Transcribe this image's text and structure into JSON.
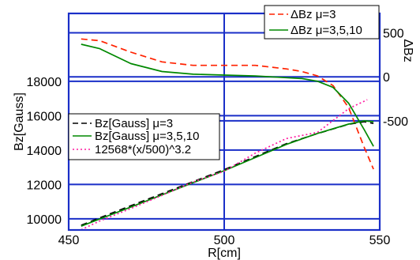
{
  "chart_data": {
    "type": "line",
    "x_ticks": [
      450,
      500,
      550
    ],
    "xlim": [
      450,
      550
    ],
    "xlabel": "R[cm]",
    "left_axis": {
      "label": "Bz[Gauss]",
      "ticks": [
        10000,
        12000,
        14000,
        16000,
        18000
      ],
      "lim": [
        9350,
        21950
      ]
    },
    "right_axis": {
      "label": "ΔBz",
      "ticks": [
        500,
        0,
        -500
      ],
      "lim": [
        -1740,
        720
      ]
    },
    "grid": true,
    "legend_top": {
      "placement": "top-right",
      "entries": [
        "ΔBz μ=3",
        "ΔBz μ=3,5,10"
      ]
    },
    "legend_bottom": {
      "placement": "center-left",
      "entries": [
        "Bz[Gauss] μ=3",
        "Bz[Gauss] μ=3,5,10",
        "12568*(x/500)^3.2"
      ]
    },
    "series": [
      {
        "name": "ΔBz μ=3",
        "axis": "right",
        "color": "#ff2200",
        "dash": "dashed",
        "x": [
          454,
          460,
          470,
          480,
          490,
          500,
          510,
          515,
          520,
          525,
          530,
          535,
          540,
          545,
          548
        ],
        "y": [
          430,
          410,
          280,
          170,
          130,
          130,
          130,
          110,
          90,
          60,
          10,
          -100,
          -350,
          -800,
          -1050
        ]
      },
      {
        "name": "ΔBz μ=3,5,10",
        "axis": "right",
        "color": "#008800",
        "dash": "solid",
        "x": [
          454,
          460,
          470,
          480,
          490,
          500,
          510,
          520,
          525,
          530,
          535,
          540,
          545,
          548
        ],
        "y": [
          370,
          320,
          150,
          60,
          30,
          20,
          10,
          -10,
          -20,
          -50,
          -120,
          -300,
          -600,
          -790
        ]
      },
      {
        "name": "Bz[Gauss] μ=3",
        "axis": "left",
        "color": "#000000",
        "dash": "dashed",
        "x": [
          454,
          460,
          470,
          480,
          490,
          500,
          510,
          520,
          530,
          540,
          545,
          548
        ],
        "y": [
          9620,
          10060,
          10760,
          11460,
          12160,
          12860,
          13620,
          14370,
          14960,
          15500,
          15650,
          15550
        ]
      },
      {
        "name": "Bz[Gauss] μ=3,5,10",
        "axis": "left",
        "color": "#008800",
        "dash": "solid",
        "x": [
          454,
          460,
          470,
          480,
          490,
          500,
          510,
          520,
          530,
          540,
          545,
          548
        ],
        "y": [
          9570,
          9990,
          10690,
          11390,
          12100,
          12800,
          13560,
          14330,
          14970,
          15510,
          15700,
          15650
        ]
      },
      {
        "name": "12568*(x/500)^3.2",
        "axis": "left",
        "color": "#ff1aa0",
        "dash": "dotted",
        "x": [
          454,
          460,
          470,
          480,
          490,
          500,
          510,
          520,
          530,
          540,
          546
        ],
        "y": [
          9360,
          9875,
          10600,
          11365,
          12135,
          12770,
          13820,
          14670,
          15030,
          16410,
          16930
        ]
      }
    ]
  }
}
